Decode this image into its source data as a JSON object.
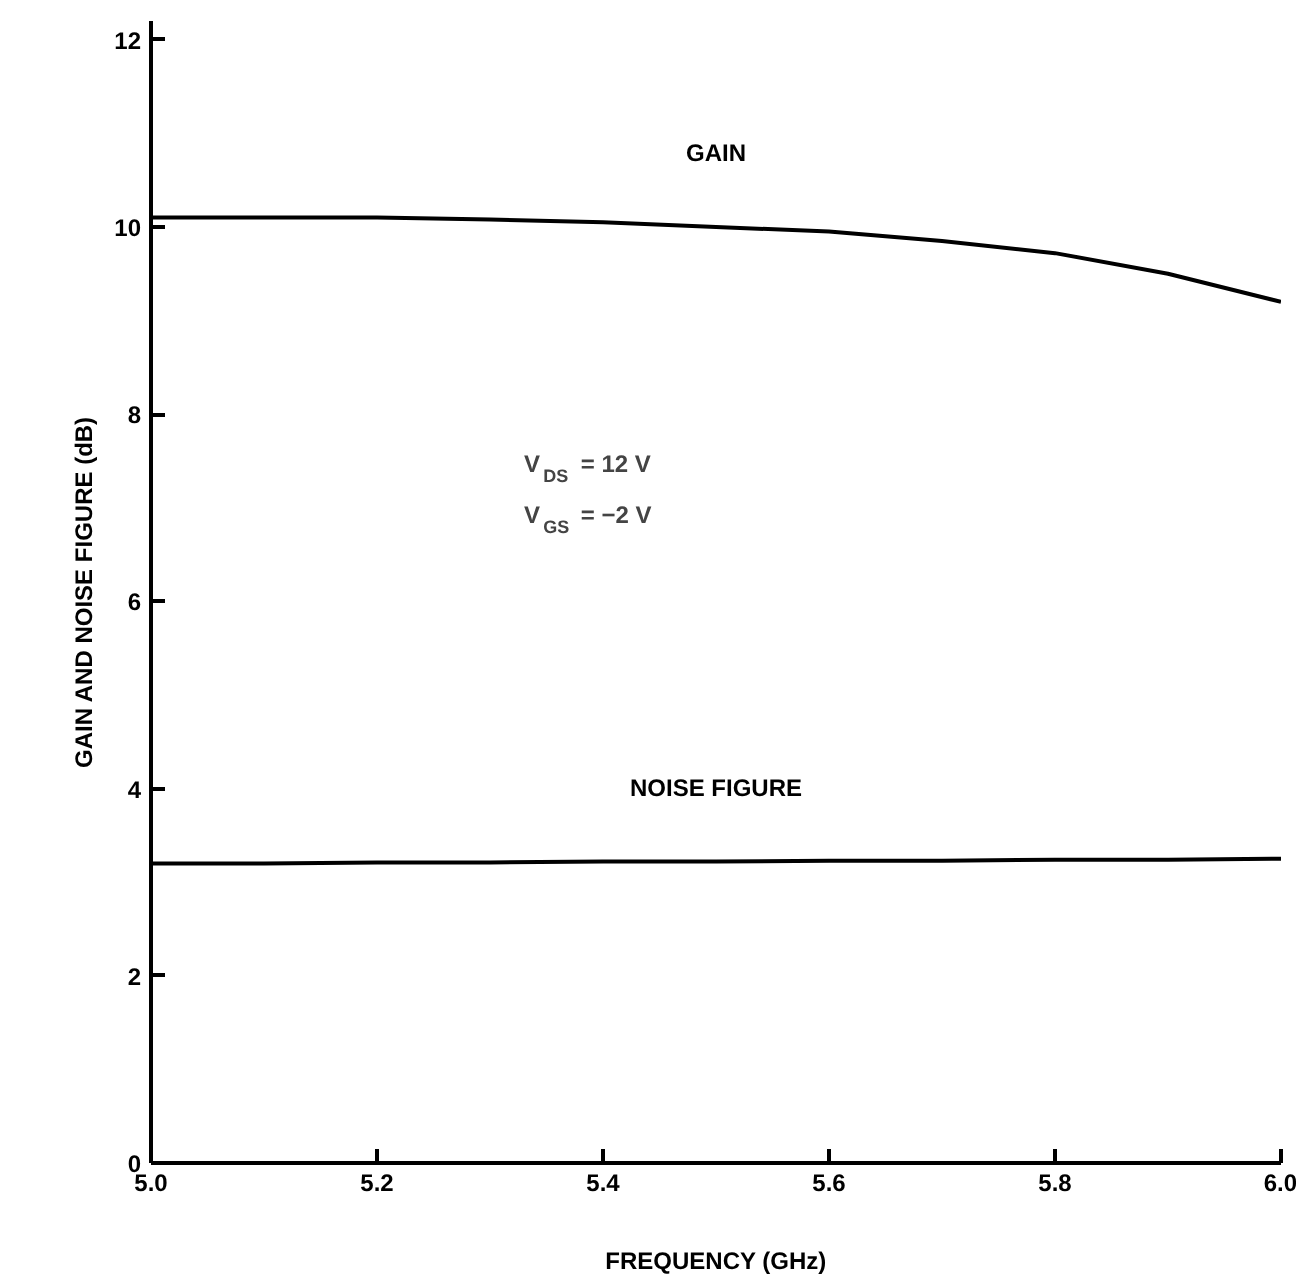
{
  "chart_data": {
    "type": "line",
    "xlabel": "FREQUENCY (GHz)",
    "ylabel": "GAIN AND NOISE FIGURE (dB)",
    "x": [
      5.0,
      5.1,
      5.2,
      5.3,
      5.4,
      5.5,
      5.6,
      5.7,
      5.8,
      5.9,
      6.0
    ],
    "series": [
      {
        "name": "GAIN",
        "color": "#000000",
        "values": [
          10.1,
          10.1,
          10.1,
          10.08,
          10.05,
          10.0,
          9.95,
          9.85,
          9.72,
          9.5,
          9.2
        ]
      },
      {
        "name": "NOISE FIGURE",
        "color": "#000000",
        "values": [
          3.2,
          3.2,
          3.21,
          3.21,
          3.22,
          3.22,
          3.23,
          3.23,
          3.24,
          3.24,
          3.25
        ]
      }
    ],
    "annotations": [
      "V$_{DS}$ = 12 V",
      "V$_{GS}$ = −2 V"
    ],
    "xlim": [
      5.0,
      6.0
    ],
    "ylim": [
      0,
      12.2
    ],
    "xticks": [
      {
        "value": 5.0,
        "label": "5.0"
      },
      {
        "value": 5.2,
        "label": "5.2"
      },
      {
        "value": 5.4,
        "label": "5.4"
      },
      {
        "value": 5.6,
        "label": "5.6"
      },
      {
        "value": 5.8,
        "label": "5.8"
      },
      {
        "value": 6.0,
        "label": "6.0"
      }
    ],
    "yticks": [
      0,
      2,
      4,
      6,
      8,
      10,
      12
    ],
    "grid": false,
    "legend": false,
    "marker": "none",
    "line_style": "solid"
  }
}
